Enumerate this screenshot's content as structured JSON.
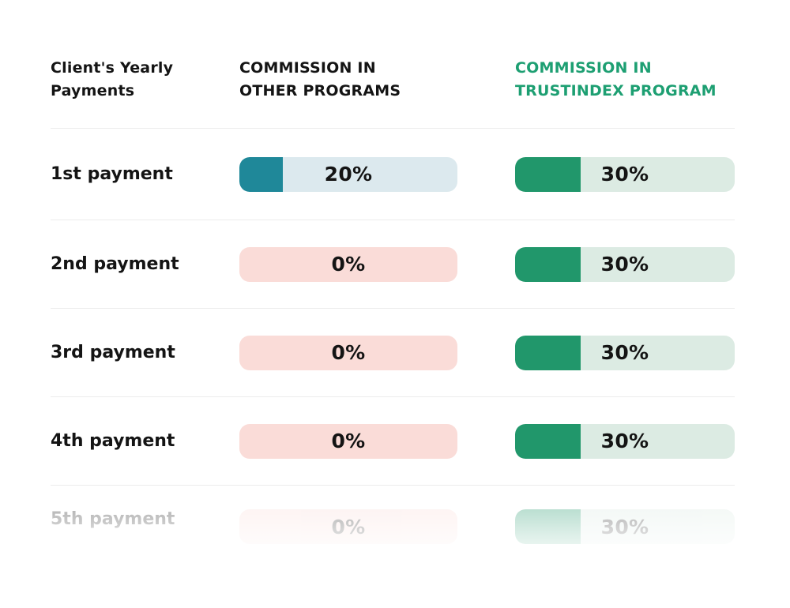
{
  "colors": {
    "header_green": "#1d9f72",
    "teal_fill": "#1f8899",
    "teal_bg": "#dce9ee",
    "green_fill": "#21976b",
    "green_bg": "#dcebe3",
    "pink_bg": "#fadcd8",
    "text": "#141414",
    "divider": "#ececec"
  },
  "header": {
    "payments_line1": "Client's Yearly",
    "payments_line2": "Payments",
    "other_line1": "COMMISSION IN",
    "other_line2": "OTHER PROGRAMS",
    "trust_line1": "COMMISSION IN",
    "trust_line2": "TRUSTINDEX PROGRAM"
  },
  "rows": [
    {
      "label": "1st payment",
      "other_value": 20,
      "other_label": "20%",
      "trust_value": 30,
      "trust_label": "30%"
    },
    {
      "label": "2nd payment",
      "other_value": 0,
      "other_label": "0%",
      "trust_value": 30,
      "trust_label": "30%"
    },
    {
      "label": "3rd payment",
      "other_value": 0,
      "other_label": "0%",
      "trust_value": 30,
      "trust_label": "30%"
    },
    {
      "label": "4th payment",
      "other_value": 0,
      "other_label": "0%",
      "trust_value": 30,
      "trust_label": "30%"
    },
    {
      "label": "5th payment",
      "other_value": 0,
      "other_label": "0%",
      "trust_value": 30,
      "trust_label": "30%"
    }
  ],
  "chart_data": {
    "type": "bar",
    "categories": [
      "1st payment",
      "2nd payment",
      "3rd payment",
      "4th payment",
      "5th payment"
    ],
    "series": [
      {
        "name": "COMMISSION IN OTHER PROGRAMS",
        "values": [
          20,
          0,
          0,
          0,
          0
        ]
      },
      {
        "name": "COMMISSION IN TRUSTINDEX PROGRAM",
        "values": [
          30,
          30,
          30,
          30,
          30
        ]
      }
    ],
    "value_unit": "%",
    "xlim": [
      0,
      100
    ],
    "title": "",
    "xlabel": "Client's Yearly Payments",
    "ylabel": "Commission",
    "legend_position": "column-headers",
    "grid": false,
    "orientation": "horizontal-pill-bars",
    "notes": "Last row (5th payment) rendered faded/reflection style"
  }
}
